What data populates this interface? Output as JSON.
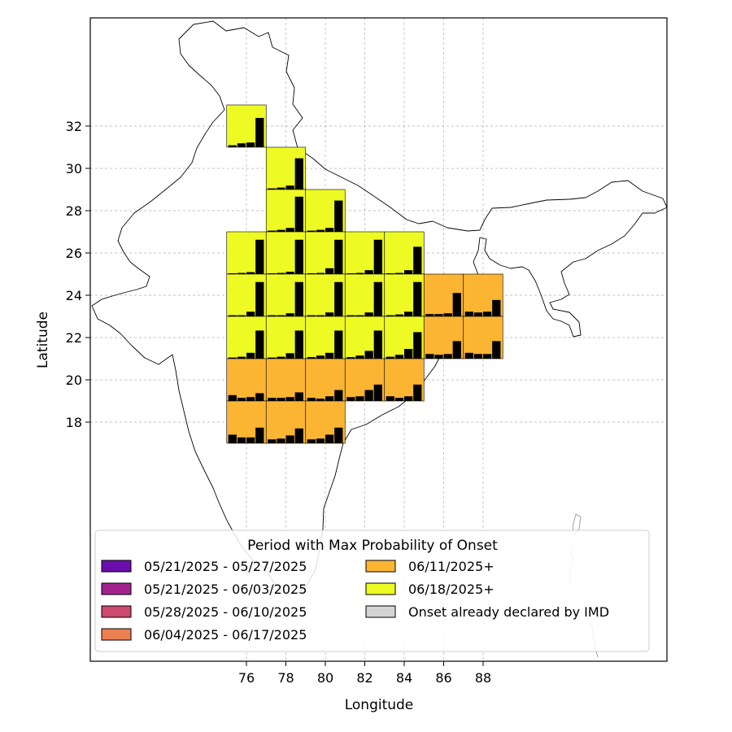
{
  "chart_data": {
    "type": "map",
    "xlabel": "Longitude",
    "ylabel": "Latitude",
    "xticks": [
      "76",
      "78",
      "80",
      "82",
      "84",
      "86",
      "88"
    ],
    "yticks": [
      "32",
      "30",
      "28",
      "26",
      "24",
      "22",
      "20",
      "18"
    ],
    "grid": true,
    "legend": {
      "title": "Period with Max Probability of Onset",
      "placement": "bottom",
      "entries": [
        {
          "label": "05/21/2025 - 05/27/2025",
          "color": "#6a0dad"
        },
        {
          "label": "05/21/2025 - 06/03/2025",
          "color": "#a3208f"
        },
        {
          "label": "05/28/2025 - 06/10/2025",
          "color": "#cc4a6e"
        },
        {
          "label": "06/04/2025 - 06/17/2025",
          "color": "#ec7f52"
        },
        {
          "label": "06/11/2025+",
          "color": "#fbb533"
        },
        {
          "label": "06/18/2025+",
          "color": "#eefa23"
        },
        {
          "label": "Onset already declared by IMD",
          "color": "#d3d3d3"
        }
      ]
    },
    "cells": [
      {
        "lon": 75,
        "lat": 31,
        "period": "06/18/2025+",
        "bars": [
          0.05,
          0.1,
          0.12,
          0.75
        ]
      },
      {
        "lon": 77,
        "lat": 29,
        "period": "06/18/2025+",
        "bars": [
          0.03,
          0.05,
          0.1,
          0.8
        ]
      },
      {
        "lon": 77,
        "lat": 27,
        "period": "06/18/2025+",
        "bars": [
          0.03,
          0.05,
          0.1,
          0.9
        ]
      },
      {
        "lon": 79,
        "lat": 27,
        "period": "06/18/2025+",
        "bars": [
          0.03,
          0.05,
          0.1,
          0.8
        ]
      },
      {
        "lon": 75,
        "lat": 25,
        "period": "06/18/2025+",
        "bars": [
          0.02,
          0.03,
          0.05,
          0.88
        ]
      },
      {
        "lon": 77,
        "lat": 25,
        "period": "06/18/2025+",
        "bars": [
          0.02,
          0.03,
          0.06,
          0.88
        ]
      },
      {
        "lon": 79,
        "lat": 25,
        "period": "06/18/2025+",
        "bars": [
          0.02,
          0.03,
          0.15,
          0.88
        ]
      },
      {
        "lon": 81,
        "lat": 25,
        "period": "06/18/2025+",
        "bars": [
          0.02,
          0.03,
          0.1,
          0.88
        ]
      },
      {
        "lon": 83,
        "lat": 25,
        "period": "06/18/2025+",
        "bars": [
          0.02,
          0.03,
          0.1,
          0.7
        ]
      },
      {
        "lon": 75,
        "lat": 23,
        "period": "06/18/2025+",
        "bars": [
          0.03,
          0.03,
          0.12,
          0.88
        ]
      },
      {
        "lon": 77,
        "lat": 23,
        "period": "06/18/2025+",
        "bars": [
          0.03,
          0.03,
          0.08,
          0.88
        ]
      },
      {
        "lon": 79,
        "lat": 23,
        "period": "06/18/2025+",
        "bars": [
          0.03,
          0.03,
          0.1,
          0.88
        ]
      },
      {
        "lon": 81,
        "lat": 23,
        "period": "06/18/2025+",
        "bars": [
          0.03,
          0.03,
          0.1,
          0.88
        ]
      },
      {
        "lon": 83,
        "lat": 23,
        "period": "06/18/2025+",
        "bars": [
          0.03,
          0.05,
          0.12,
          0.88
        ]
      },
      {
        "lon": 85,
        "lat": 23,
        "period": "06/11/2025+",
        "bars": [
          0.06,
          0.06,
          0.08,
          0.6
        ]
      },
      {
        "lon": 87,
        "lat": 23,
        "period": "06/11/2025+",
        "bars": [
          0.12,
          0.1,
          0.12,
          0.42
        ]
      },
      {
        "lon": 75,
        "lat": 21,
        "period": "06/18/2025+",
        "bars": [
          0.03,
          0.05,
          0.15,
          0.72
        ]
      },
      {
        "lon": 77,
        "lat": 21,
        "period": "06/18/2025+",
        "bars": [
          0.03,
          0.05,
          0.14,
          0.72
        ]
      },
      {
        "lon": 79,
        "lat": 21,
        "period": "06/18/2025+",
        "bars": [
          0.04,
          0.08,
          0.15,
          0.72
        ]
      },
      {
        "lon": 81,
        "lat": 21,
        "period": "06/18/2025+",
        "bars": [
          0.04,
          0.08,
          0.2,
          0.72
        ]
      },
      {
        "lon": 83,
        "lat": 21,
        "period": "06/18/2025+",
        "bars": [
          0.05,
          0.1,
          0.25,
          0.68
        ]
      },
      {
        "lon": 85,
        "lat": 21,
        "period": "06/11/2025+",
        "bars": [
          0.12,
          0.1,
          0.12,
          0.45
        ]
      },
      {
        "lon": 87,
        "lat": 21,
        "period": "06/11/2025+",
        "bars": [
          0.15,
          0.12,
          0.12,
          0.45
        ]
      },
      {
        "lon": 75,
        "lat": 19,
        "period": "06/11/2025+",
        "bars": [
          0.15,
          0.08,
          0.1,
          0.2
        ]
      },
      {
        "lon": 77,
        "lat": 19,
        "period": "06/11/2025+",
        "bars": [
          0.08,
          0.08,
          0.1,
          0.22
        ]
      },
      {
        "lon": 79,
        "lat": 19,
        "period": "06/11/2025+",
        "bars": [
          0.08,
          0.06,
          0.12,
          0.28
        ]
      },
      {
        "lon": 81,
        "lat": 19,
        "period": "06/11/2025+",
        "bars": [
          0.1,
          0.12,
          0.28,
          0.42
        ]
      },
      {
        "lon": 83,
        "lat": 19,
        "period": "06/11/2025+",
        "bars": [
          0.12,
          0.08,
          0.12,
          0.42
        ]
      },
      {
        "lon": 75,
        "lat": 17,
        "period": "06/11/2025+",
        "bars": [
          0.22,
          0.15,
          0.15,
          0.4
        ]
      },
      {
        "lon": 77,
        "lat": 17,
        "period": "06/11/2025+",
        "bars": [
          0.1,
          0.12,
          0.2,
          0.38
        ]
      },
      {
        "lon": 79,
        "lat": 17,
        "period": "06/11/2025+",
        "bars": [
          0.1,
          0.12,
          0.22,
          0.4
        ]
      }
    ]
  }
}
